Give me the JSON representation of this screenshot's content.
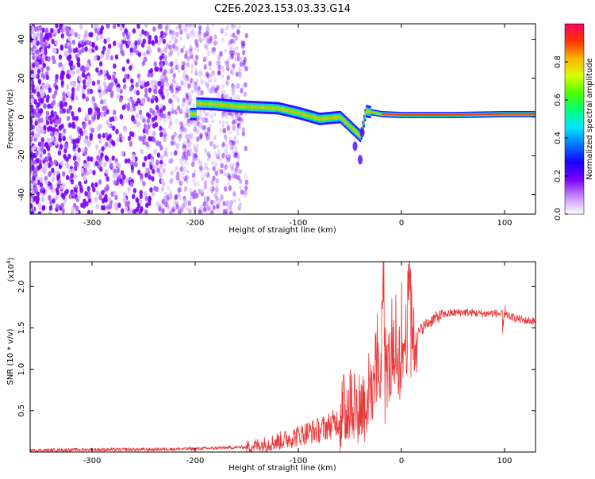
{
  "title": "C2E6.2023.153.03.33.G14",
  "chart_data": [
    {
      "type": "heatmap",
      "xlabel": "Height of straight line (km)",
      "ylabel": "Frequency (Hz)",
      "xlim": [
        -360,
        130
      ],
      "ylim": [
        -50,
        48
      ],
      "xticks": [
        -300,
        -200,
        -100,
        0,
        100
      ],
      "yticks": [
        -40,
        -20,
        0,
        20,
        40
      ],
      "colorbar": {
        "label": "Normalized spectral amplitude",
        "range": [
          0,
          1
        ],
        "ticks": [
          0.0,
          0.2,
          0.4,
          0.6,
          0.8
        ],
        "colors": [
          "#ffffff",
          "#c58cff",
          "#7a00ff",
          "#1a00ff",
          "#0077ff",
          "#00e5ff",
          "#00ff7a",
          "#4cff00",
          "#d8ff00",
          "#ffb300",
          "#ff3300",
          "#ff0066"
        ]
      },
      "ridge": [
        {
          "x": -200,
          "y": 7
        },
        {
          "x": -180,
          "y": 6.5
        },
        {
          "x": -160,
          "y": 5.5
        },
        {
          "x": -140,
          "y": 5
        },
        {
          "x": -120,
          "y": 4.5
        },
        {
          "x": -100,
          "y": 2
        },
        {
          "x": -80,
          "y": -1
        },
        {
          "x": -60,
          "y": 0
        },
        {
          "x": -40,
          "y": -10
        },
        {
          "x": -35,
          "y": 3
        },
        {
          "x": -20,
          "y": 1.5
        },
        {
          "x": 0,
          "y": 1
        },
        {
          "x": 50,
          "y": 1
        },
        {
          "x": 100,
          "y": 1.5
        },
        {
          "x": 130,
          "y": 1.5
        }
      ]
    },
    {
      "type": "line",
      "xlabel": "Height of straight line (km)",
      "ylabel": "SNR (10 * v/v)",
      "y_multiplier": "(x10",
      "y_multiplier_exp": "4",
      "y_multiplier_close": ")",
      "xlim": [
        -360,
        130
      ],
      "ylim": [
        0,
        2.3
      ],
      "xticks": [
        -300,
        -200,
        -100,
        0,
        100
      ],
      "yticks": [
        0.5,
        1.0,
        1.5,
        2.0
      ],
      "series": [
        {
          "color": "#e8393a",
          "x": [
            -360,
            -300,
            -250,
            -200,
            -150,
            -130,
            -110,
            -100,
            -90,
            -80,
            -70,
            -60,
            -50,
            -45,
            -40,
            -35,
            -30,
            -25,
            -20,
            -18,
            -15,
            -10,
            -5,
            0,
            5,
            8,
            12,
            15,
            20,
            30,
            40,
            50,
            60,
            70,
            80,
            90,
            100,
            110,
            120,
            130
          ],
          "y": [
            0.02,
            0.03,
            0.03,
            0.04,
            0.06,
            0.1,
            0.16,
            0.2,
            0.24,
            0.26,
            0.32,
            0.38,
            0.6,
            0.65,
            0.55,
            0.6,
            0.8,
            1.0,
            0.9,
            2.3,
            1.0,
            1.05,
            1.15,
            1.2,
            1.4,
            2.2,
            1.3,
            1.4,
            1.5,
            1.6,
            1.66,
            1.68,
            1.69,
            1.68,
            1.67,
            1.68,
            1.66,
            1.62,
            1.59,
            1.58
          ]
        }
      ]
    }
  ]
}
